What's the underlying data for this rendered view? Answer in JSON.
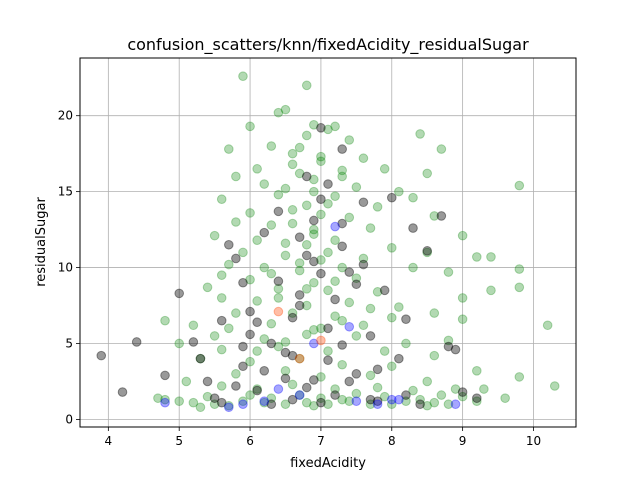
{
  "chart_data": {
    "type": "scatter",
    "title": "confusion_scatters/knn/fixedAcidity_residualSugar",
    "xlabel": "fixedAcidity",
    "ylabel": "residualSugar",
    "xlim": [
      3.6,
      10.6
    ],
    "ylim": [
      -0.5,
      23.8
    ],
    "xticks": [
      4,
      5,
      6,
      7,
      8,
      9,
      10
    ],
    "yticks": [
      0,
      5,
      10,
      15,
      20
    ],
    "grid": true,
    "legend": "none",
    "series": [
      {
        "color": "#008000",
        "alpha": 0.3,
        "points": [
          [
            5.9,
            22.6
          ],
          [
            6.8,
            22.0
          ],
          [
            6.5,
            20.4
          ],
          [
            6.4,
            20.2
          ],
          [
            6.0,
            19.3
          ],
          [
            6.9,
            19.4
          ],
          [
            7.2,
            19.3
          ],
          [
            8.4,
            18.8
          ],
          [
            8.7,
            17.8
          ],
          [
            5.7,
            17.8
          ],
          [
            6.3,
            18.0
          ],
          [
            6.6,
            17.5
          ],
          [
            7.0,
            17.0
          ],
          [
            7.6,
            17.2
          ],
          [
            7.9,
            16.5
          ],
          [
            6.1,
            16.5
          ],
          [
            5.8,
            16.0
          ],
          [
            6.7,
            16.2
          ],
          [
            7.3,
            16.0
          ],
          [
            8.5,
            16.2
          ],
          [
            9.8,
            15.4
          ],
          [
            6.2,
            15.5
          ],
          [
            6.9,
            15.0
          ],
          [
            7.5,
            15.3
          ],
          [
            8.1,
            15.0
          ],
          [
            5.6,
            14.5
          ],
          [
            6.4,
            14.8
          ],
          [
            7.1,
            14.2
          ],
          [
            7.8,
            14.0
          ],
          [
            8.3,
            14.6
          ],
          [
            6.0,
            13.6
          ],
          [
            6.6,
            13.8
          ],
          [
            7.4,
            13.3
          ],
          [
            8.6,
            13.4
          ],
          [
            5.8,
            13.0
          ],
          [
            6.3,
            12.8
          ],
          [
            6.9,
            12.5
          ],
          [
            7.7,
            12.6
          ],
          [
            9.0,
            12.1
          ],
          [
            5.5,
            12.1
          ],
          [
            6.1,
            11.8
          ],
          [
            6.8,
            11.5
          ],
          [
            7.2,
            11.8
          ],
          [
            8.0,
            11.3
          ],
          [
            8.5,
            11.0
          ],
          [
            5.9,
            11.0
          ],
          [
            6.5,
            10.8
          ],
          [
            7.0,
            10.5
          ],
          [
            7.6,
            10.6
          ],
          [
            9.2,
            10.7
          ],
          [
            9.4,
            10.7
          ],
          [
            5.7,
            10.2
          ],
          [
            6.2,
            10.0
          ],
          [
            6.7,
            9.8
          ],
          [
            7.3,
            10.0
          ],
          [
            8.3,
            10.0
          ],
          [
            9.8,
            9.9
          ],
          [
            5.6,
            9.5
          ],
          [
            6.0,
            9.2
          ],
          [
            6.9,
            9.0
          ],
          [
            7.5,
            9.3
          ],
          [
            8.8,
            9.7
          ],
          [
            5.4,
            8.7
          ],
          [
            6.4,
            8.6
          ],
          [
            7.1,
            8.5
          ],
          [
            7.8,
            8.4
          ],
          [
            9.8,
            8.7
          ],
          [
            9.4,
            8.5
          ],
          [
            5.6,
            8.0
          ],
          [
            6.1,
            7.8
          ],
          [
            6.8,
            7.5
          ],
          [
            7.4,
            7.7
          ],
          [
            8.1,
            7.4
          ],
          [
            9.0,
            8.0
          ],
          [
            5.8,
            7.0
          ],
          [
            6.6,
            7.0
          ],
          [
            7.2,
            6.8
          ],
          [
            8.0,
            6.7
          ],
          [
            8.6,
            7.0
          ],
          [
            4.8,
            6.5
          ],
          [
            5.2,
            6.2
          ],
          [
            5.7,
            6.0
          ],
          [
            6.3,
            6.3
          ],
          [
            7.0,
            6.0
          ],
          [
            7.6,
            6.2
          ],
          [
            9.0,
            6.6
          ],
          [
            10.2,
            6.2
          ],
          [
            5.5,
            5.5
          ],
          [
            6.2,
            5.3
          ],
          [
            6.8,
            5.6
          ],
          [
            7.5,
            5.5
          ],
          [
            8.2,
            5.0
          ],
          [
            8.8,
            5.2
          ],
          [
            5.0,
            5.0
          ],
          [
            5.6,
            4.6
          ],
          [
            6.4,
            4.8
          ],
          [
            7.1,
            4.5
          ],
          [
            7.9,
            4.5
          ],
          [
            8.6,
            4.2
          ],
          [
            5.3,
            4.0
          ],
          [
            6.0,
            3.8
          ],
          [
            6.7,
            4.0
          ],
          [
            7.3,
            3.6
          ],
          [
            8.0,
            3.5
          ],
          [
            9.2,
            3.2
          ],
          [
            5.8,
            3.0
          ],
          [
            6.5,
            3.2
          ],
          [
            7.0,
            2.8
          ],
          [
            7.7,
            2.9
          ],
          [
            8.5,
            2.5
          ],
          [
            9.8,
            2.8
          ],
          [
            10.3,
            2.2
          ],
          [
            5.1,
            2.5
          ],
          [
            5.6,
            2.2
          ],
          [
            6.1,
            2.0
          ],
          [
            6.6,
            2.3
          ],
          [
            7.2,
            2.0
          ],
          [
            7.8,
            2.1
          ],
          [
            8.3,
            1.9
          ],
          [
            8.9,
            2.0
          ],
          [
            9.3,
            2.0
          ],
          [
            4.7,
            1.4
          ],
          [
            5.0,
            1.2
          ],
          [
            5.4,
            1.5
          ],
          [
            5.9,
            1.2
          ],
          [
            6.3,
            1.4
          ],
          [
            6.8,
            1.1
          ],
          [
            7.3,
            1.3
          ],
          [
            7.7,
            1.0
          ],
          [
            8.2,
            1.2
          ],
          [
            8.6,
            1.1
          ],
          [
            9.0,
            1.5
          ],
          [
            9.6,
            1.4
          ],
          [
            4.8,
            1.3
          ],
          [
            5.5,
            1.0
          ],
          [
            6.0,
            1.6
          ],
          [
            6.5,
            1.0
          ],
          [
            7.0,
            1.4
          ],
          [
            7.5,
            1.7
          ],
          [
            8.0,
            1.0
          ],
          [
            8.7,
            1.6
          ],
          [
            9.2,
            1.2
          ],
          [
            5.2,
            1.1
          ],
          [
            5.7,
            0.9
          ],
          [
            6.2,
            1.1
          ],
          [
            6.7,
            1.6
          ],
          [
            7.1,
            1.0
          ],
          [
            7.9,
            1.5
          ],
          [
            8.4,
            1.3
          ],
          [
            8.8,
            1.0
          ],
          [
            5.3,
            0.8
          ],
          [
            6.9,
            0.9
          ],
          [
            7.4,
            1.2
          ],
          [
            8.5,
            0.9
          ],
          [
            6.1,
            4.5
          ],
          [
            6.5,
            5.1
          ],
          [
            6.9,
            5.9
          ],
          [
            7.3,
            6.5
          ],
          [
            7.7,
            7.3
          ],
          [
            6.4,
            8.0
          ],
          [
            6.8,
            8.6
          ],
          [
            7.2,
            9.1
          ],
          [
            6.3,
            9.6
          ],
          [
            6.7,
            10.3
          ],
          [
            7.1,
            11.0
          ],
          [
            6.5,
            11.6
          ],
          [
            6.9,
            12.2
          ],
          [
            6.6,
            12.9
          ],
          [
            7.0,
            13.5
          ],
          [
            6.8,
            14.1
          ],
          [
            7.2,
            14.7
          ],
          [
            6.5,
            15.2
          ],
          [
            6.9,
            15.8
          ],
          [
            7.3,
            16.4
          ],
          [
            6.6,
            16.8
          ],
          [
            7.0,
            17.3
          ],
          [
            6.7,
            17.9
          ],
          [
            7.4,
            18.4
          ],
          [
            6.8,
            18.7
          ],
          [
            7.1,
            19.1
          ]
        ]
      },
      {
        "color": "#000000",
        "alpha": 0.4,
        "points": [
          [
            3.9,
            4.2
          ],
          [
            4.2,
            1.8
          ],
          [
            4.4,
            5.1
          ],
          [
            4.8,
            2.9
          ],
          [
            5.0,
            8.3
          ],
          [
            5.2,
            5.1
          ],
          [
            5.3,
            4.0
          ],
          [
            5.4,
            2.5
          ],
          [
            5.5,
            1.4
          ],
          [
            5.6,
            6.5
          ],
          [
            5.7,
            11.5
          ],
          [
            5.8,
            10.6
          ],
          [
            5.9,
            9.0
          ],
          [
            5.9,
            3.5
          ],
          [
            6.0,
            7.1
          ],
          [
            6.1,
            1.9
          ],
          [
            6.2,
            12.3
          ],
          [
            6.3,
            5.0
          ],
          [
            6.4,
            13.7
          ],
          [
            6.5,
            4.4
          ],
          [
            6.6,
            1.3
          ],
          [
            6.7,
            7.5
          ],
          [
            6.8,
            16.0
          ],
          [
            6.9,
            10.4
          ],
          [
            6.9,
            2.6
          ],
          [
            7.0,
            19.2
          ],
          [
            7.0,
            14.5
          ],
          [
            7.1,
            6.0
          ],
          [
            7.2,
            1.6
          ],
          [
            7.3,
            17.8
          ],
          [
            7.3,
            12.9
          ],
          [
            7.4,
            9.7
          ],
          [
            7.5,
            3.0
          ],
          [
            7.6,
            14.3
          ],
          [
            7.7,
            5.5
          ],
          [
            7.8,
            1.2
          ],
          [
            7.9,
            8.5
          ],
          [
            8.0,
            14.6
          ],
          [
            8.1,
            4.0
          ],
          [
            8.2,
            1.6
          ],
          [
            8.3,
            12.6
          ],
          [
            8.5,
            11.1
          ],
          [
            8.7,
            13.4
          ],
          [
            8.8,
            4.8
          ],
          [
            8.9,
            4.6
          ],
          [
            9.0,
            1.8
          ],
          [
            9.2,
            1.4
          ],
          [
            5.6,
            1.1
          ],
          [
            6.3,
            1.0
          ],
          [
            7.0,
            1.1
          ],
          [
            7.7,
            1.3
          ],
          [
            8.4,
            1.0
          ],
          [
            6.0,
            5.6
          ],
          [
            6.6,
            6.7
          ],
          [
            7.2,
            7.9
          ],
          [
            6.4,
            9.1
          ],
          [
            6.8,
            10.8
          ],
          [
            7.3,
            11.4
          ],
          [
            6.9,
            13.1
          ],
          [
            7.1,
            15.5
          ],
          [
            6.7,
            12.0
          ],
          [
            7.5,
            8.9
          ],
          [
            6.2,
            3.2
          ],
          [
            6.8,
            2.1
          ],
          [
            7.4,
            2.5
          ],
          [
            5.8,
            2.2
          ],
          [
            6.5,
            2.7
          ],
          [
            7.1,
            3.9
          ],
          [
            7.8,
            3.3
          ],
          [
            8.2,
            6.6
          ],
          [
            5.9,
            4.8
          ],
          [
            6.6,
            4.2
          ],
          [
            7.3,
            4.9
          ],
          [
            6.1,
            6.4
          ],
          [
            6.7,
            8.2
          ],
          [
            7.0,
            9.6
          ],
          [
            7.6,
            10.2
          ]
        ]
      },
      {
        "color": "#0000ff",
        "alpha": 0.35,
        "points": [
          [
            4.8,
            1.1
          ],
          [
            5.7,
            0.8
          ],
          [
            5.9,
            1.0
          ],
          [
            6.7,
            1.6
          ],
          [
            7.2,
            12.7
          ],
          [
            7.4,
            6.1
          ],
          [
            7.5,
            1.2
          ],
          [
            8.0,
            1.3
          ],
          [
            8.1,
            1.3
          ],
          [
            8.9,
            1.0
          ],
          [
            6.2,
            1.2
          ],
          [
            6.9,
            5.0
          ],
          [
            6.4,
            2.0
          ],
          [
            7.8,
            1.0
          ]
        ]
      },
      {
        "color": "#ff4500",
        "alpha": 0.35,
        "points": [
          [
            6.7,
            4.0
          ],
          [
            6.4,
            7.1
          ],
          [
            7.0,
            5.2
          ]
        ]
      }
    ]
  }
}
